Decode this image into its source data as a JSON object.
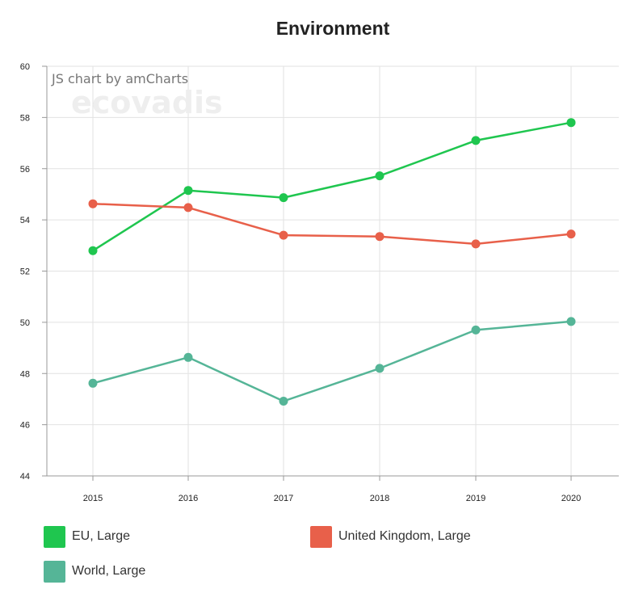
{
  "chart_data": {
    "type": "line",
    "title": "Environment",
    "credit": "JS chart by amCharts",
    "watermark": "ecovadis",
    "x": [
      "2015",
      "2016",
      "2017",
      "2018",
      "2019",
      "2020"
    ],
    "ylim": [
      44,
      60
    ],
    "yticks": [
      "44",
      "46",
      "48",
      "50",
      "52",
      "54",
      "56",
      "58",
      "60"
    ],
    "grid": true,
    "legend_position": "bottom",
    "series": [
      {
        "name": "EU, Large",
        "color": "#1fc64f",
        "values": [
          52.8,
          55.15,
          54.87,
          55.72,
          57.1,
          57.8
        ]
      },
      {
        "name": "United Kingdom, Large",
        "color": "#e8604a",
        "values": [
          54.63,
          54.48,
          53.4,
          53.35,
          53.06,
          53.45
        ]
      },
      {
        "name": "World, Large",
        "color": "#55b597",
        "values": [
          47.62,
          48.63,
          46.92,
          48.2,
          49.7,
          50.03
        ]
      }
    ]
  }
}
